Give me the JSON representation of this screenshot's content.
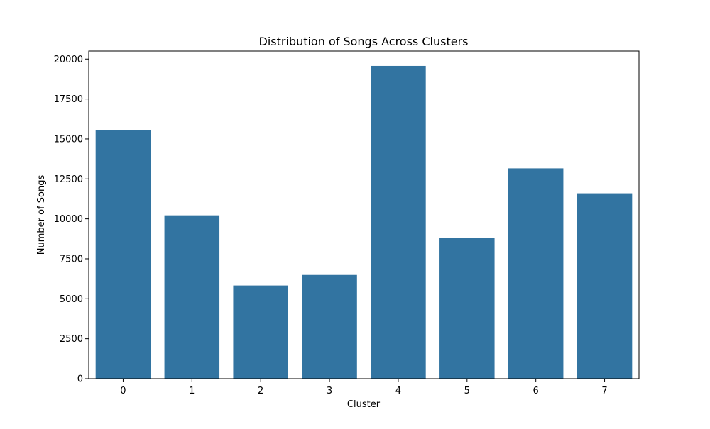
{
  "chart_data": {
    "type": "bar",
    "title": "Distribution of Songs Across Clusters",
    "xlabel": "Cluster",
    "ylabel": "Number of Songs",
    "categories": [
      "0",
      "1",
      "2",
      "3",
      "4",
      "5",
      "6",
      "7"
    ],
    "values": [
      15560,
      10220,
      5830,
      6490,
      19570,
      8810,
      13160,
      11600
    ],
    "ylim": [
      0,
      20500
    ],
    "yticks": [
      0,
      2500,
      5000,
      7500,
      10000,
      12500,
      15000,
      17500,
      20000
    ],
    "ytick_labels": [
      "0",
      "2500",
      "5000",
      "7500",
      "10000",
      "12500",
      "15000",
      "17500",
      "20000"
    ],
    "grid": false,
    "legend": "none",
    "bar_color": "#3274a1"
  }
}
